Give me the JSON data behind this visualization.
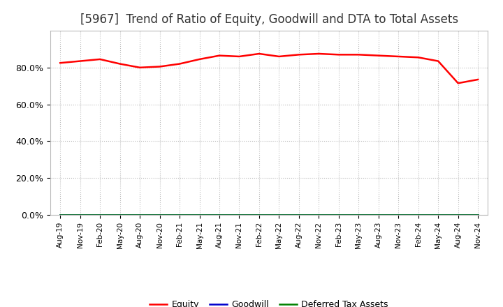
{
  "title": "[5967]  Trend of Ratio of Equity, Goodwill and DTA to Total Assets",
  "x_labels": [
    "Aug-19",
    "Nov-19",
    "Feb-20",
    "May-20",
    "Aug-20",
    "Nov-20",
    "Feb-21",
    "May-21",
    "Aug-21",
    "Nov-21",
    "Feb-22",
    "May-22",
    "Aug-22",
    "Nov-22",
    "Feb-23",
    "May-23",
    "Aug-23",
    "Nov-23",
    "Feb-24",
    "May-24",
    "Aug-24",
    "Nov-24"
  ],
  "equity": [
    82.5,
    83.5,
    84.5,
    82.0,
    80.0,
    80.5,
    82.0,
    84.5,
    86.5,
    86.0,
    87.5,
    86.0,
    87.0,
    87.5,
    87.0,
    87.0,
    86.5,
    86.0,
    85.5,
    83.5,
    71.5,
    73.5
  ],
  "goodwill": [
    0.0,
    0.0,
    0.0,
    0.0,
    0.0,
    0.0,
    0.0,
    0.0,
    0.0,
    0.0,
    0.0,
    0.0,
    0.0,
    0.0,
    0.0,
    0.0,
    0.0,
    0.0,
    0.0,
    0.0,
    0.0,
    0.0
  ],
  "dta": [
    0.0,
    0.0,
    0.0,
    0.0,
    0.0,
    0.0,
    0.0,
    0.0,
    0.0,
    0.0,
    0.0,
    0.0,
    0.0,
    0.0,
    0.0,
    0.0,
    0.0,
    0.0,
    0.0,
    0.0,
    0.0,
    0.0
  ],
  "equity_color": "#ff0000",
  "goodwill_color": "#0000cc",
  "dta_color": "#008000",
  "background_color": "#ffffff",
  "grid_color": "#bbbbbb",
  "ylim": [
    0,
    100
  ],
  "yticks": [
    0,
    20,
    40,
    60,
    80
  ],
  "ytick_labels": [
    "0.0%",
    "20.0%",
    "40.0%",
    "60.0%",
    "80.0%"
  ],
  "title_fontsize": 12,
  "legend_entries": [
    "Equity",
    "Goodwill",
    "Deferred Tax Assets"
  ]
}
